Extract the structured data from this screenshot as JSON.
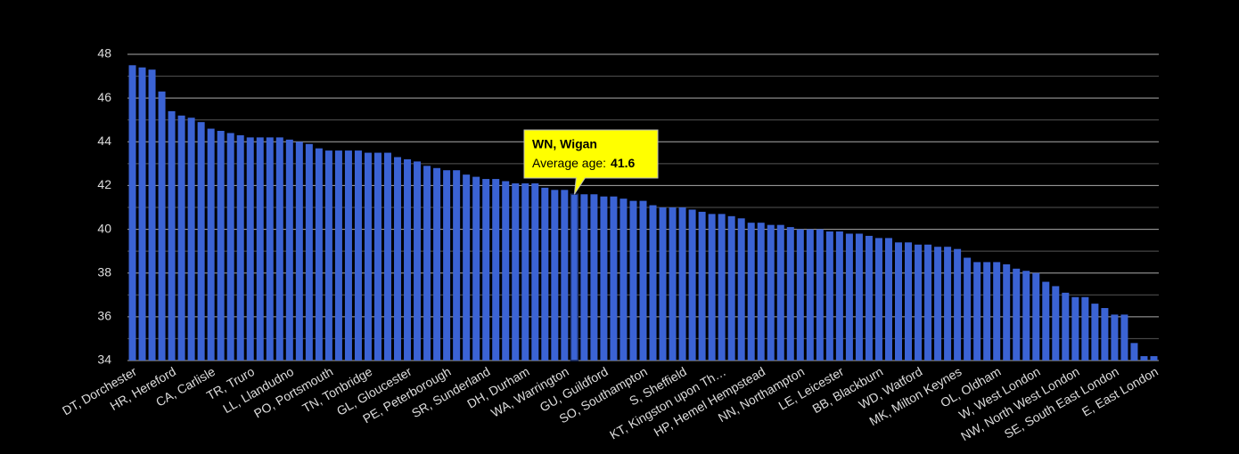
{
  "chart_data": {
    "type": "bar",
    "categories": [
      "DT, Dorchester",
      null,
      null,
      null,
      "HR, Hereford",
      null,
      null,
      null,
      "CA, Carlisle",
      null,
      null,
      null,
      "TR, Truro",
      null,
      null,
      null,
      "LL, Llandudno",
      null,
      null,
      null,
      "PO, Portsmouth",
      null,
      null,
      null,
      "TN, Tonbridge",
      null,
      null,
      null,
      "GL, Gloucester",
      null,
      null,
      null,
      "PE, Peterborough",
      null,
      null,
      null,
      "SR, Sunderland",
      null,
      null,
      null,
      "DH, Durham",
      null,
      null,
      null,
      "WA, Warrington",
      null,
      null,
      null,
      "GU, Guildford",
      null,
      null,
      null,
      "SO, Southampton",
      null,
      null,
      null,
      "S, Sheffield",
      null,
      null,
      null,
      "KT, Kingston upon Th…",
      null,
      null,
      null,
      "HP, Hemel Hempstead",
      null,
      null,
      null,
      "NN, Northampton",
      null,
      null,
      null,
      "LE, Leicester",
      null,
      null,
      null,
      "BB, Blackburn",
      null,
      null,
      null,
      "WD, Watford",
      null,
      null,
      null,
      "MK, Milton Keynes",
      null,
      null,
      null,
      "OL, Oldham",
      null,
      null,
      null,
      "W, West London",
      null,
      null,
      null,
      "NW, North West London",
      null,
      null,
      null,
      "SE, South East London",
      null,
      null,
      null,
      "E, East London"
    ],
    "values": [
      47.5,
      47.4,
      47.3,
      46.3,
      45.4,
      45.2,
      45.1,
      44.9,
      44.6,
      44.5,
      44.4,
      44.3,
      44.2,
      44.2,
      44.2,
      44.2,
      44.1,
      44.0,
      43.9,
      43.7,
      43.6,
      43.6,
      43.6,
      43.6,
      43.5,
      43.5,
      43.5,
      43.3,
      43.2,
      43.1,
      42.9,
      42.8,
      42.7,
      42.7,
      42.5,
      42.4,
      42.3,
      42.3,
      42.2,
      42.1,
      42.1,
      42.1,
      41.9,
      41.8,
      41.8,
      41.6,
      41.6,
      41.6,
      41.5,
      41.5,
      41.4,
      41.3,
      41.3,
      41.1,
      41.0,
      41.0,
      41.0,
      40.9,
      40.8,
      40.7,
      40.7,
      40.6,
      40.5,
      40.3,
      40.3,
      40.2,
      40.2,
      40.1,
      40.0,
      40.0,
      40.0,
      39.9,
      39.9,
      39.8,
      39.8,
      39.7,
      39.6,
      39.6,
      39.4,
      39.4,
      39.3,
      39.3,
      39.2,
      39.2,
      39.1,
      38.7,
      38.5,
      38.5,
      38.5,
      38.4,
      38.2,
      38.1,
      38.0,
      37.6,
      37.4,
      37.1,
      36.9,
      36.9,
      36.6,
      36.4,
      36.1,
      36.1,
      34.8,
      34.2,
      34.2
    ],
    "color": "#3b63d4",
    "ylim": [
      34,
      48
    ],
    "yticks": [
      34,
      36,
      38,
      40,
      42,
      44,
      46,
      48
    ],
    "minor_yticks": [
      35,
      37,
      39,
      41,
      43,
      45,
      47
    ],
    "grid": true,
    "tooltip": {
      "index": 45,
      "title": "WN, Wigan",
      "label": "Average age:"
    }
  }
}
